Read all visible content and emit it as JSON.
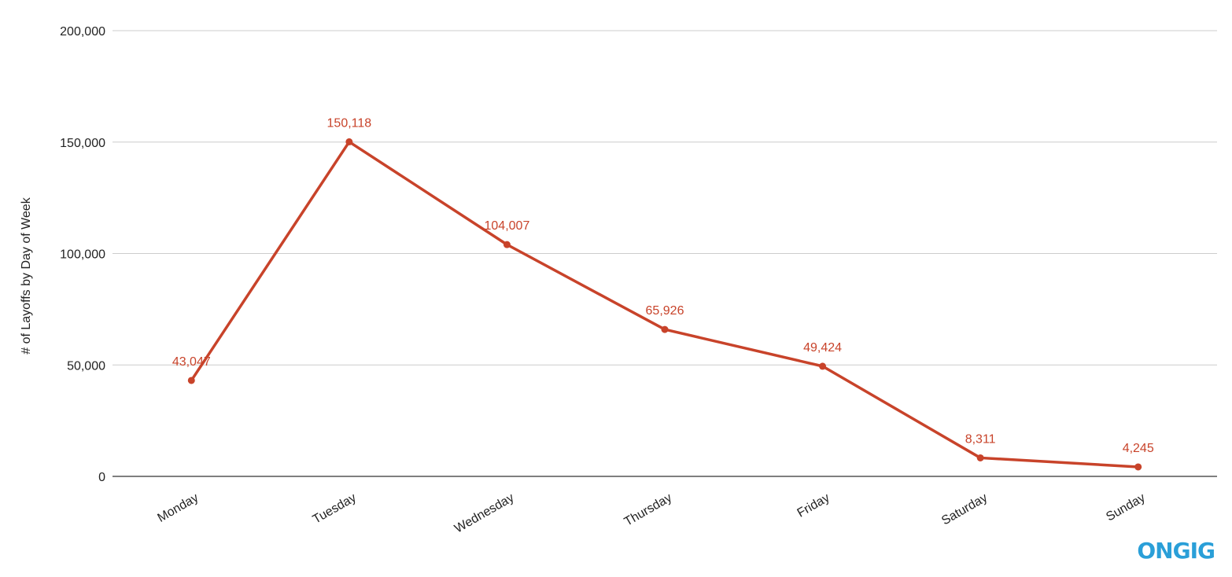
{
  "chart_data": {
    "type": "line",
    "title": "",
    "xlabel": "",
    "ylabel": "# of Layoffs by Day of Week",
    "categories": [
      "Monday",
      "Tuesday",
      "Wednesday",
      "Thursday",
      "Friday",
      "Saturday",
      "Sunday"
    ],
    "series": [
      {
        "values": [
          43047,
          150118,
          104007,
          65926,
          49424,
          8311,
          4245
        ],
        "labels": [
          "43,047",
          "150,118",
          "104,007",
          "65,926",
          "49,424",
          "8,311",
          "4,245"
        ]
      }
    ],
    "ylim": [
      0,
      200000
    ],
    "yticks": [
      0,
      50000,
      100000,
      150000,
      200000
    ],
    "ytick_labels": [
      "0",
      "50,000",
      "100,000",
      "150,000",
      "200,000"
    ],
    "grid": true,
    "legend": "none"
  },
  "branding": {
    "logo_text": "ONGIG"
  },
  "colors": {
    "series": "#c8432a",
    "label": "#c8432a",
    "grid": "#cccccc",
    "axis": "#333333",
    "logo": "#2a9fd8"
  }
}
